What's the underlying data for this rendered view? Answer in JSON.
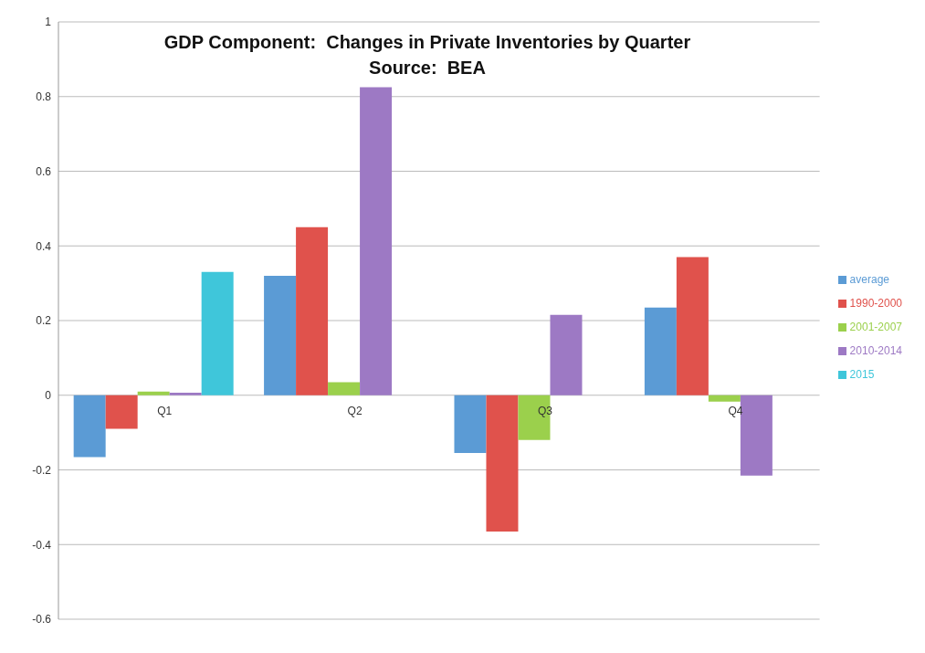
{
  "chart_data": {
    "type": "bar",
    "title": "GDP Component:  Changes in Private Inventories by Quarter",
    "subtitle": "Source:  BEA",
    "categories": [
      "Q1",
      "Q2",
      "Q3",
      "Q4"
    ],
    "series": [
      {
        "name": "average",
        "color": "#5b9bd5",
        "values": [
          -0.166,
          0.32,
          -0.155,
          0.235
        ]
      },
      {
        "name": "1990-2000",
        "color": "#e0524c",
        "values": [
          -0.09,
          0.45,
          -0.365,
          0.37
        ]
      },
      {
        "name": "2001-2007",
        "color": "#9bd04c",
        "values": [
          0.01,
          0.035,
          -0.12,
          -0.017
        ]
      },
      {
        "name": "2010-2014",
        "color": "#9d79c4",
        "values": [
          0.007,
          0.825,
          0.215,
          -0.215
        ]
      },
      {
        "name": "2015",
        "color": "#3fc6da",
        "values": [
          0.33,
          null,
          null,
          null
        ]
      }
    ],
    "ylim": [
      -0.6,
      1
    ],
    "yticks": [
      -0.6,
      -0.4,
      -0.2,
      0,
      0.2,
      0.4,
      0.6,
      0.8,
      1
    ],
    "grid": "y",
    "legend": "right"
  }
}
